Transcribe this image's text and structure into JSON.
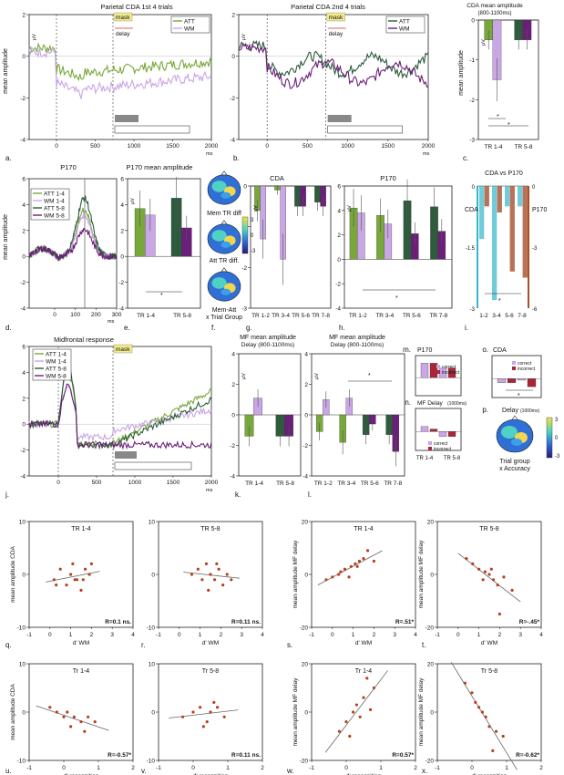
{
  "colors": {
    "att_light": "#78a83a",
    "wm_light": "#c9a6e6",
    "att_dark": "#2e5b3c",
    "wm_dark": "#6b1f7a",
    "cda_axis": "#35b6c9",
    "p170_axis": "#a84f2c",
    "correct": "#c9a6e6",
    "incorrect": "#a8263a",
    "mask": "#f2ea8b",
    "scatter_point": "#b5421c"
  },
  "panels": {
    "a": {
      "letter": "a.",
      "title": "Parietal CDA 1st 4 trials",
      "ylabel": "mean amplitude",
      "unit": "μV",
      "xunit": "ms",
      "mask": "mask",
      "delay": "delay",
      "legend": [
        "ATT",
        "WM"
      ],
      "yticks": [
        "2",
        "0",
        "-2",
        "-4"
      ],
      "xticks": [
        "0",
        "500",
        "1000",
        "1500",
        "2000"
      ]
    },
    "b": {
      "letter": "b.",
      "title": "Parietal CDA 2nd 4 trials",
      "unit": "μV",
      "xunit": "ms",
      "mask": "mask",
      "delay": "delay",
      "legend": [
        "ATT",
        "WM"
      ],
      "yticks": [
        "2",
        "0",
        "-2",
        "-4"
      ],
      "xticks": [
        "0",
        "500",
        "1000",
        "1500",
        "2000"
      ]
    },
    "c": {
      "letter": "c.",
      "title": "CDA mean amplitude",
      "subtitle": "(800-1100ms)",
      "ylabel": "mean amplitude",
      "unit": "μV",
      "yticks": [
        "0",
        "-1",
        "-2",
        "-3"
      ],
      "xticks": [
        "TR 1-4",
        "TR 5-8"
      ],
      "sig": "*"
    },
    "d": {
      "letter": "d.",
      "title": "P170",
      "ylabel": "mean amplitude",
      "unit": "μV",
      "xunit": "ms",
      "legend": [
        "ATT 1-4",
        "WM 1-4",
        "ATT 5-8",
        "WM 5-8"
      ],
      "yticks": [
        "6",
        "4",
        "2",
        "0",
        "-2",
        "-4"
      ],
      "xticks": [
        "0",
        "100",
        "200",
        "300"
      ]
    },
    "e": {
      "letter": "e.",
      "title": "P170 mean amplitude",
      "unit": "μV",
      "yticks": [
        "6",
        "4",
        "2",
        "0",
        "-2",
        "-4"
      ],
      "xticks": [
        "TR 1-4",
        "TR 5-8"
      ],
      "sig": "*"
    },
    "f": {
      "letter": "f.",
      "labels": [
        "Mem TR diff",
        "Att TR diff.",
        "Mem-Att",
        "x Trial Group"
      ],
      "colorbar": [
        "3",
        "0",
        "-3"
      ]
    },
    "g": {
      "letter": "g.",
      "title": "CDA",
      "unit": "μV",
      "yticks": [
        "0",
        "-1",
        "-2",
        "-3"
      ],
      "xticks": [
        "TR 1-2",
        "TR 3-4",
        "TR 5-6",
        "TR 7-8"
      ]
    },
    "h": {
      "letter": "h.",
      "title": "P170",
      "unit": "μV",
      "yticks": [
        "6",
        "4",
        "2",
        "0",
        "-2",
        "-4"
      ],
      "xticks": [
        "TR 1-2",
        "TR 3-4",
        "TR 5-6",
        "TR 7-8"
      ],
      "sig": "*"
    },
    "i": {
      "letter": "i.",
      "title": "CDA vs P170",
      "left_label": "CDA",
      "right_label": "P170",
      "left_ticks": [
        "0",
        "-1.5",
        "-3"
      ],
      "right_ticks": [
        "0",
        "-3",
        "-6"
      ],
      "xticks": [
        "1-2",
        "3-4",
        "5-6",
        "7-8"
      ],
      "sig": "*"
    },
    "j": {
      "letter": "j.",
      "title": "Midfrontal response",
      "unit": "μV",
      "xunit": "ms",
      "mask": "mask",
      "legend": [
        "ATT 1-4",
        "WM 1-4",
        "ATT 5-8",
        "WM 5-8"
      ],
      "yticks": [
        "6",
        "4",
        "2",
        "0",
        "-2",
        "-4"
      ],
      "xticks": [
        "0",
        "500",
        "1000",
        "1500",
        "2000"
      ]
    },
    "k": {
      "letter": "k.",
      "title": "MF mean amplitude",
      "subtitle": "Delay (800-1100ms)",
      "unit": "μV",
      "yticks": [
        "4",
        "2",
        "0",
        "-2",
        "-4"
      ],
      "xticks": [
        "TR 1-4",
        "TR 5-8"
      ]
    },
    "l": {
      "letter": "l.",
      "title": "MF mean amplitude",
      "subtitle": "Delay (800-1100ms)",
      "unit": "μV",
      "yticks": [
        "4",
        "2",
        "0",
        "-2",
        "-4"
      ],
      "xticks": [
        "TR 1-2",
        "TR 3-4",
        "TR 5-6",
        "TR 7-8"
      ],
      "sig": "*"
    },
    "m": {
      "letter": "m.",
      "title": "P170",
      "legend": [
        "correct",
        "incorrect"
      ]
    },
    "n": {
      "letter": "n.",
      "title": "MF Delay",
      "subtitle": "(1000ms)",
      "legend": [
        "correct",
        "incorrect"
      ],
      "xticks": [
        "TR 1-4",
        "TR 5-8"
      ]
    },
    "o": {
      "letter": "o.",
      "title": "CDA",
      "legend": [
        "correct",
        "incorrect"
      ],
      "sig": "*"
    },
    "p": {
      "letter": "p.",
      "title": "Delay",
      "subtitle": "(1000ms)",
      "labels": [
        "Trial group",
        "x Accuracy"
      ],
      "colorbar": [
        "3",
        "0",
        "-3"
      ]
    },
    "q": {
      "letter": "q.",
      "title": "TR 1-4",
      "ylabel": "mean amplitude  CDA",
      "xlabel": "d' WM",
      "r": "R=0.1 ns.",
      "xticks": [
        "-1",
        "0",
        "1",
        "2",
        "3",
        "4"
      ],
      "yticks": [
        "10",
        "0",
        "-10"
      ]
    },
    "r": {
      "letter": "r.",
      "title": "TR 5-8",
      "xlabel": "d' WM",
      "r": "R=0.11 ns.",
      "xticks": [
        "-1",
        "0",
        "1",
        "2",
        "3",
        "4"
      ],
      "yticks": [
        "10",
        "0",
        "-10"
      ]
    },
    "s": {
      "letter": "s.",
      "title": "TR 1-4",
      "ylabel": "mean amplitude MF delay",
      "xlabel": "d' WM",
      "r": "R=.51*",
      "xticks": [
        "-1",
        "0",
        "1",
        "2",
        "3",
        "4"
      ],
      "yticks": [
        "20",
        "0",
        "-20"
      ]
    },
    "t": {
      "letter": "t.",
      "title": "TR 5-8",
      "ylabel": "mean amplitude MF delay",
      "xlabel": "d' WM",
      "r": "R=-.45*",
      "xticks": [
        "-1",
        "0",
        "1",
        "2",
        "3",
        "4"
      ],
      "yticks": [
        "20",
        "0",
        "-20"
      ]
    },
    "u": {
      "letter": "u.",
      "title": "Tr 1-4",
      "ylabel": "mean amplitude  CDA",
      "xlabel": "d' recognition",
      "r": "R=-0.57*",
      "xticks": [
        "-1",
        "0",
        "1",
        "2"
      ],
      "yticks": [
        "10",
        "0",
        "-10"
      ]
    },
    "v": {
      "letter": "v.",
      "title": "Tr 5-8",
      "xlabel": "d' recognition",
      "r": "R=0.11 ns.",
      "xticks": [
        "-1",
        "0",
        "1",
        "2"
      ],
      "yticks": [
        "10",
        "0",
        "-10"
      ]
    },
    "w": {
      "letter": "w.",
      "title": "Tr 1-4",
      "ylabel": "mean amplitude MF delay",
      "xlabel": "d' recognition",
      "r": "R=0.57*",
      "xticks": [
        "-1",
        "0",
        "1",
        "2"
      ],
      "yticks": [
        "20",
        "0",
        "-20"
      ]
    },
    "x": {
      "letter": "x.",
      "title": "Tr 5-8",
      "ylabel": "mean amplitude MF delay",
      "xlabel": "d' recognition",
      "r": "R=-0.62*",
      "xticks": [
        "-1",
        "0",
        "1",
        "2"
      ],
      "yticks": [
        "20",
        "0",
        "-20"
      ]
    }
  },
  "chart_data": [
    {
      "panel": "c",
      "type": "bar",
      "categories": [
        "TR 1-4",
        "TR 5-8"
      ],
      "series": [
        {
          "name": "ATT",
          "values": [
            -0.5,
            -0.5
          ]
        },
        {
          "name": "WM",
          "values": [
            -1.5,
            -0.5
          ]
        }
      ],
      "ylim": [
        -3,
        0
      ]
    },
    {
      "panel": "e",
      "type": "bar",
      "categories": [
        "TR 1-4",
        "TR 5-8"
      ],
      "series": [
        {
          "name": "ATT",
          "values": [
            3.7,
            4.5
          ]
        },
        {
          "name": "WM",
          "values": [
            3.2,
            2.2
          ]
        }
      ],
      "ylim": [
        -4,
        6
      ]
    },
    {
      "panel": "g",
      "type": "bar",
      "categories": [
        "TR 1-2",
        "TR 3-4",
        "TR 5-6",
        "TR 7-8"
      ],
      "series": [
        {
          "name": "ATT",
          "values": [
            -0.6,
            -0.1,
            -0.5,
            -0.4
          ]
        },
        {
          "name": "WM",
          "values": [
            -1.3,
            -1.8,
            -0.5,
            -0.5
          ]
        }
      ],
      "ylim": [
        -3,
        0
      ]
    },
    {
      "panel": "h",
      "type": "bar",
      "categories": [
        "TR 1-2",
        "TR 3-4",
        "TR 5-6",
        "TR 7-8"
      ],
      "series": [
        {
          "name": "ATT",
          "values": [
            4.2,
            3.6,
            4.8,
            4.3
          ]
        },
        {
          "name": "WM",
          "values": [
            3.8,
            2.9,
            2.1,
            2.3
          ]
        }
      ],
      "ylim": [
        -4,
        6
      ]
    },
    {
      "panel": "k",
      "type": "bar",
      "categories": [
        "TR 1-4",
        "TR 5-8"
      ],
      "series": [
        {
          "name": "ATT",
          "values": [
            -1.4,
            -1.4
          ]
        },
        {
          "name": "WM",
          "values": [
            1.1,
            -1.4
          ]
        }
      ],
      "ylim": [
        -4,
        4
      ]
    },
    {
      "panel": "l",
      "type": "bar",
      "categories": [
        "TR 1-2",
        "TR 3-4",
        "TR 5-6",
        "TR 7-8"
      ],
      "series": [
        {
          "name": "ATT",
          "values": [
            -1.1,
            -1.8,
            -1.3,
            -1.3
          ]
        },
        {
          "name": "WM",
          "values": [
            1.0,
            1.1,
            -0.6,
            -2.4
          ]
        }
      ],
      "ylim": [
        -4,
        4
      ]
    },
    {
      "panel": "i",
      "type": "bar",
      "categories": [
        "1-2",
        "3-4",
        "5-6",
        "7-8"
      ],
      "series": [
        {
          "name": "CDA",
          "values": [
            -1.3,
            -2.8,
            -0.5,
            -0.5
          ]
        },
        {
          "name": "P170",
          "values": [
            -1.0,
            -1.3,
            -4.2,
            -4.5
          ]
        }
      ]
    },
    {
      "panel": "q",
      "type": "scatter",
      "x": [
        0.2,
        0.5,
        0.8,
        1.0,
        1.1,
        1.3,
        1.5,
        1.7,
        1.9,
        2.0,
        0.3,
        1.2,
        1.6
      ],
      "y": [
        -1,
        1,
        -2,
        0,
        2,
        -1,
        -3,
        1,
        0,
        2,
        -2,
        -1,
        -1
      ],
      "xlim": [
        -1,
        4
      ],
      "ylim": [
        -10,
        10
      ]
    },
    {
      "panel": "r",
      "type": "scatter",
      "x": [
        0.6,
        0.9,
        1.1,
        1.3,
        1.5,
        1.7,
        1.9,
        2.1,
        2.3,
        2.5,
        1.4,
        1.8
      ],
      "y": [
        0,
        1,
        -1,
        2,
        0,
        -1,
        1,
        -2,
        0,
        -1,
        -3,
        2
      ],
      "xlim": [
        -1,
        4
      ],
      "ylim": [
        -10,
        10
      ]
    },
    {
      "panel": "s",
      "type": "scatter",
      "x": [
        -0.3,
        0.0,
        0.3,
        0.6,
        0.9,
        1.1,
        1.3,
        1.5,
        1.7,
        2.0,
        0.4,
        0.8,
        1.2
      ],
      "y": [
        -2,
        -1,
        0,
        2,
        3,
        4,
        5,
        6,
        9,
        5,
        1,
        -1,
        3
      ],
      "xlim": [
        -1,
        4
      ],
      "ylim": [
        -20,
        20
      ]
    },
    {
      "panel": "t",
      "type": "scatter",
      "x": [
        0.4,
        0.7,
        1.0,
        1.3,
        1.5,
        1.7,
        1.9,
        2.2,
        2.6,
        1.2,
        1.6,
        2.0
      ],
      "y": [
        6,
        4,
        2,
        1,
        0,
        -2,
        -4,
        -1,
        -6,
        -2,
        2,
        -15
      ],
      "xlim": [
        -1,
        4
      ],
      "ylim": [
        -20,
        20
      ]
    },
    {
      "panel": "u",
      "type": "scatter",
      "x": [
        -0.4,
        -0.2,
        0.0,
        0.1,
        0.3,
        0.5,
        0.7,
        0.9,
        0.2,
        0.6
      ],
      "y": [
        1,
        0,
        -1,
        0,
        -1,
        -2,
        -1,
        -2,
        -3,
        -4
      ],
      "xlim": [
        -1,
        2
      ],
      "ylim": [
        -10,
        10
      ]
    },
    {
      "panel": "v",
      "type": "scatter",
      "x": [
        -0.3,
        0.0,
        0.2,
        0.4,
        0.5,
        0.7,
        0.9,
        0.3,
        0.6
      ],
      "y": [
        -1,
        0,
        1,
        -2,
        0,
        1,
        -1,
        -3,
        2
      ],
      "xlim": [
        -1,
        2
      ],
      "ylim": [
        -10,
        10
      ]
    },
    {
      "panel": "w",
      "type": "scatter",
      "x": [
        -0.2,
        0.0,
        0.2,
        0.3,
        0.5,
        0.6,
        0.8,
        0.4,
        0.7,
        0.1
      ],
      "y": [
        -8,
        -4,
        0,
        3,
        6,
        14,
        10,
        -2,
        1,
        -10
      ],
      "xlim": [
        -1,
        2
      ],
      "ylim": [
        -20,
        20
      ]
    },
    {
      "panel": "x",
      "type": "scatter",
      "x": [
        -0.2,
        0.0,
        0.1,
        0.3,
        0.4,
        0.5,
        0.7,
        0.9,
        0.6,
        0.2
      ],
      "y": [
        12,
        8,
        4,
        0,
        -2,
        -6,
        -8,
        -10,
        -16,
        2
      ],
      "xlim": [
        -1,
        2
      ],
      "ylim": [
        -20,
        20
      ]
    }
  ]
}
